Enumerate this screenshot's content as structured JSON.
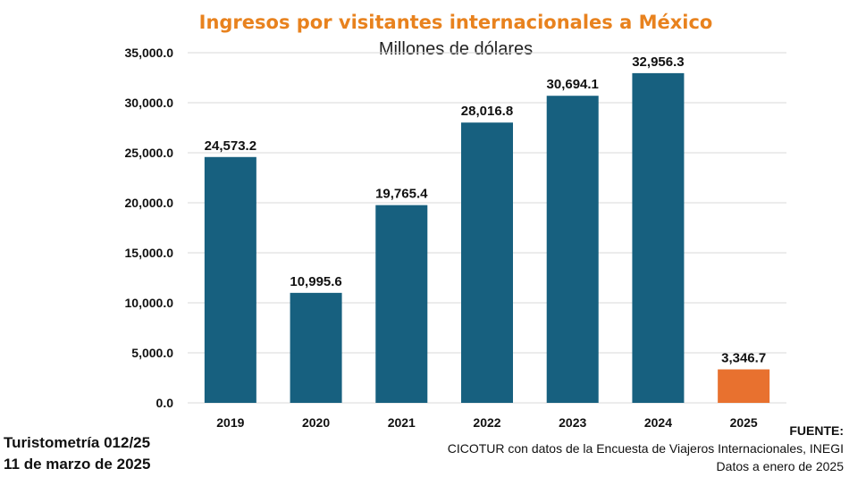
{
  "chart_data": {
    "type": "bar",
    "title": "Ingresos por visitantes internacionales a México",
    "subtitle": "Millones de dólares",
    "categories": [
      "2019",
      "2020",
      "2021",
      "2022",
      "2023",
      "2024",
      "2025"
    ],
    "values": [
      24573.2,
      10995.6,
      19765.4,
      28016.8,
      30694.1,
      32956.3,
      3346.7
    ],
    "value_labels": [
      "24,573.2",
      "10,995.6",
      "19,765.4",
      "28,016.8",
      "30,694.1",
      "32,956.3",
      "3,346.7"
    ],
    "ylim": [
      0,
      35000
    ],
    "yticks": [
      0,
      5000,
      10000,
      15000,
      20000,
      25000,
      30000,
      35000
    ],
    "ytick_labels": [
      "0.0",
      "5,000.0",
      "10,000.0",
      "15,000.0",
      "20,000.0",
      "25,000.0",
      "30,000.0",
      "35,000.0"
    ],
    "xlabel": "",
    "ylabel": "",
    "grid": true,
    "colors": {
      "bar": "#17607F",
      "highlight": "#E8712F",
      "title": "#E8821E"
    },
    "highlight_index": 6
  },
  "footer": {
    "report": "Turistometría 012/25",
    "date": "11 de marzo de 2025",
    "source_title": "FUENTE:",
    "source_text": "CICOTUR con datos de la Encuesta de Viajeros Internacionales, INEGI",
    "data_note": "Datos a enero de 2025"
  }
}
